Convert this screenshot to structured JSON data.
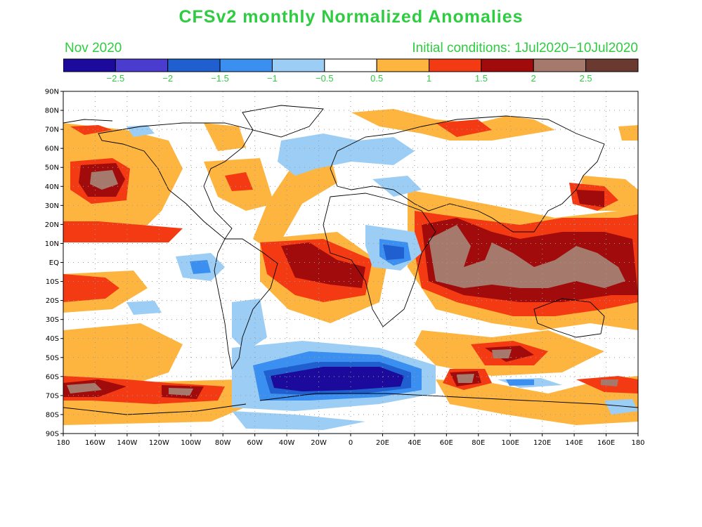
{
  "title": "CFSv2 monthly Normalized Anomalies",
  "month": "Nov 2020",
  "initial_conditions": "Initial conditions: 1Jul2020−10Jul2020",
  "colorbar": {
    "colors": [
      "#1b0a9b",
      "#4a3ccf",
      "#1f5fcf",
      "#3a8ff0",
      "#9ccdf5",
      "#ffffff",
      "#fdb53f",
      "#f43a12",
      "#a10b0b",
      "#a6796d",
      "#6a3a30"
    ],
    "labels": [
      "−2.5",
      "−2",
      "−1.5",
      "−1",
      "−0.5",
      "0.5",
      "1",
      "1.5",
      "2",
      "2.5"
    ]
  },
  "axes": {
    "lat_ticks": [
      "90N",
      "80N",
      "70N",
      "60N",
      "50N",
      "40N",
      "30N",
      "20N",
      "10N",
      "EQ",
      "10S",
      "20S",
      "30S",
      "40S",
      "50S",
      "60S",
      "70S",
      "80S",
      "90S"
    ],
    "lon_ticks": [
      "180",
      "160W",
      "140W",
      "120W",
      "100W",
      "80W",
      "60W",
      "40W",
      "20W",
      "0",
      "20E",
      "40E",
      "60E",
      "80E",
      "100E",
      "120E",
      "140E",
      "160E",
      "180"
    ]
  }
}
